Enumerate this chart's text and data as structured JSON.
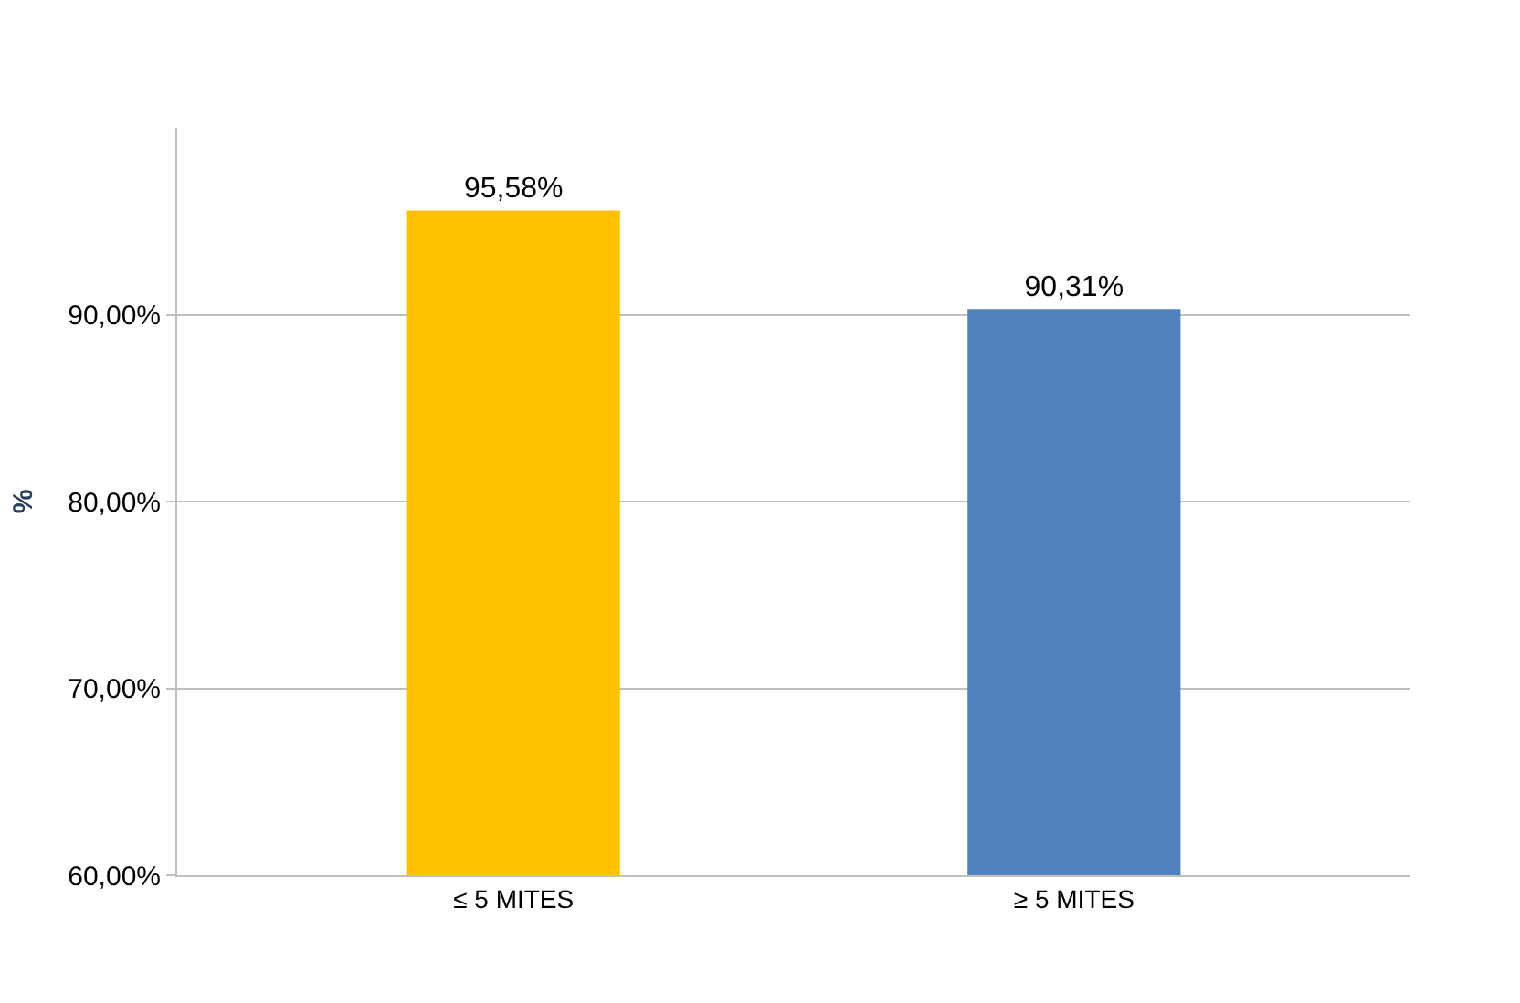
{
  "chart_data": {
    "type": "bar",
    "ylabel": "%",
    "categories": [
      "≤ 5 MITES",
      "≥ 5 MITES"
    ],
    "values": [
      95.58,
      90.31
    ],
    "colors": [
      "#ffc000",
      "#4f81bd"
    ],
    "value_labels": [
      "95,58%",
      "90,31%"
    ],
    "ylim": [
      60,
      100
    ],
    "yticks": [
      {
        "value": 60,
        "label": "60,00%"
      },
      {
        "value": 70,
        "label": "70,00%"
      },
      {
        "value": 80,
        "label": "80,00%"
      },
      {
        "value": 90,
        "label": "90,00%"
      }
    ],
    "grid": "y",
    "legend": false
  }
}
